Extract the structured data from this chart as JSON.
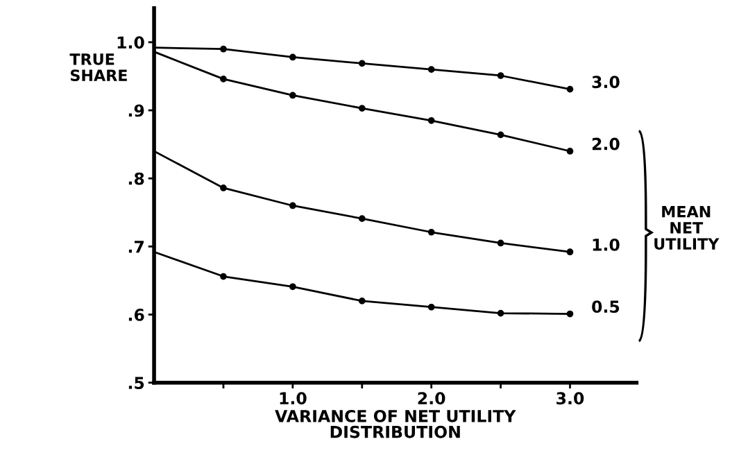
{
  "chart_data": {
    "type": "line",
    "xlabel": "VARIANCE OF NET UTILITY\nDISTRIBUTION",
    "ylabel": "TRUE\nSHARE",
    "legend_title": "MEAN\nNET\nUTILITY",
    "x": [
      0,
      0.5,
      1.0,
      1.5,
      2.0,
      2.5,
      3.0
    ],
    "series": [
      {
        "name": "3.0",
        "color": "#000000",
        "values": [
          0.992,
          0.99,
          0.978,
          0.969,
          0.96,
          0.951,
          0.931
        ]
      },
      {
        "name": "2.0",
        "color": "#000000",
        "values": [
          0.986,
          0.946,
          0.922,
          0.903,
          0.885,
          0.864,
          0.84
        ]
      },
      {
        "name": "1.0",
        "color": "#000000",
        "values": [
          0.84,
          0.786,
          0.76,
          0.741,
          0.721,
          0.705,
          0.692
        ]
      },
      {
        "name": "0.5",
        "color": "#000000",
        "values": [
          0.692,
          0.656,
          0.641,
          0.62,
          0.611,
          0.602,
          0.601
        ]
      }
    ],
    "xlim": [
      0,
      3.48
    ],
    "ylim": [
      0.5,
      1.05
    ],
    "xticks": [
      {
        "value": 0.5,
        "label": null
      },
      {
        "value": 1.0,
        "label": "1.0"
      },
      {
        "value": 1.5,
        "label": null
      },
      {
        "value": 2.0,
        "label": "2.0"
      },
      {
        "value": 2.5,
        "label": null
      },
      {
        "value": 3.0,
        "label": "3.0"
      }
    ],
    "yticks": [
      {
        "value": 0.5,
        "label": ".5"
      },
      {
        "value": 0.6,
        "label": ".6"
      },
      {
        "value": 0.7,
        "label": ".7"
      },
      {
        "value": 0.8,
        "label": ".8"
      },
      {
        "value": 0.9,
        "label": ".9"
      },
      {
        "value": 1.0,
        "label": "1.0"
      }
    ],
    "marker": "circle",
    "line_style": "solid",
    "grid": false,
    "legend": "right"
  }
}
